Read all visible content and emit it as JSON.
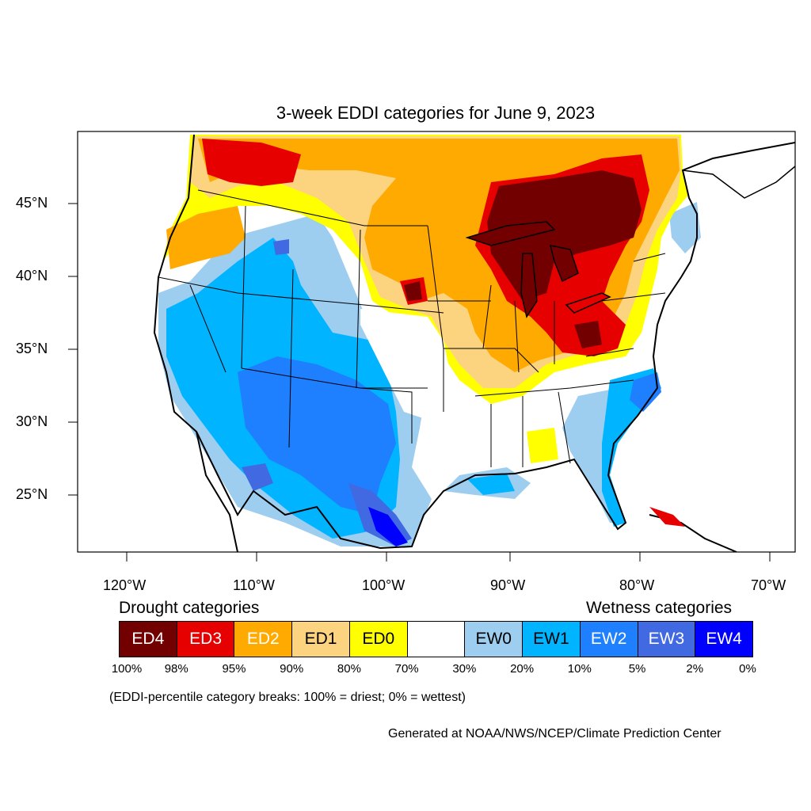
{
  "title": "3-week EDDI categories for June 9, 2023",
  "lat_labels": [
    "45°N",
    "40°N",
    "35°N",
    "30°N",
    "25°N"
  ],
  "lon_labels": [
    "120°W",
    "110°W",
    "100°W",
    "90°W",
    "80°W",
    "70°W"
  ],
  "legend": {
    "drought_heading": "Drought categories",
    "wetness_heading": "Wetness categories",
    "categories": [
      {
        "label": "ED4",
        "color": "#730000",
        "text_color": "#ffffff"
      },
      {
        "label": "ED3",
        "color": "#e60000",
        "text_color": "#ffffff"
      },
      {
        "label": "ED2",
        "color": "#ffaa00",
        "text_color": "#ffffff"
      },
      {
        "label": "ED1",
        "color": "#fcd37f",
        "text_color": "#000000"
      },
      {
        "label": "ED0",
        "color": "#ffff00",
        "text_color": "#000000"
      },
      {
        "label": "",
        "color": "#ffffff",
        "text_color": "#000000"
      },
      {
        "label": "EW0",
        "color": "#9dcdef",
        "text_color": "#000000"
      },
      {
        "label": "EW1",
        "color": "#00b4ff",
        "text_color": "#000000"
      },
      {
        "label": "EW2",
        "color": "#1e7fff",
        "text_color": "#ffffff"
      },
      {
        "label": "EW3",
        "color": "#4169e1",
        "text_color": "#ffffff"
      },
      {
        "label": "EW4",
        "color": "#0000ff",
        "text_color": "#ffffff"
      }
    ],
    "percent_breaks": [
      "100%",
      "98%",
      "95%",
      "90%",
      "80%",
      "70%",
      "30%",
      "20%",
      "10%",
      "5%",
      "2%",
      "0%"
    ]
  },
  "footnote": "(EDDI-percentile category breaks: 100% = driest; 0% = wettest)",
  "credit": "Generated at NOAA/NWS/NCEP/Climate Prediction Center"
}
